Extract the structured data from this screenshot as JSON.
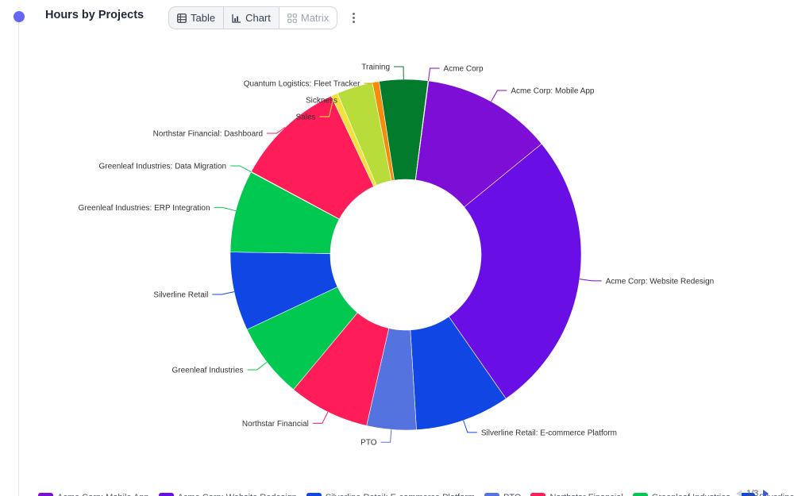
{
  "widget": {
    "title": "Hours by Projects"
  },
  "view_toggle": {
    "table_label": "Table",
    "chart_label": "Chart",
    "matrix_label": "Matrix",
    "active": "Chart"
  },
  "chart_data": {
    "type": "pie",
    "donut": true,
    "labels_position": "outside-with-leader-lines",
    "slices": [
      {
        "label": "Acme Corp: Mobile App",
        "value": 11.6,
        "color": "#7c0ed6"
      },
      {
        "label": "Acme Corp: Website Redesign",
        "value": 25.3,
        "color": "#6a0ee6"
      },
      {
        "label": "Silverline Retail: E-commerce Platform",
        "value": 8.4,
        "color": "#1046e3"
      },
      {
        "label": "PTO",
        "value": 4.4,
        "color": "#5473de"
      },
      {
        "label": "Northstar Financial",
        "value": 7.2,
        "color": "#fe1d58"
      },
      {
        "label": "Greenleaf Industries",
        "value": 6.7,
        "color": "#00c850"
      },
      {
        "label": "Silverline Retail",
        "value": 7.0,
        "color": "#1046e3"
      },
      {
        "label": "Greenleaf Industries: ERP Integration",
        "value": 7.3,
        "color": "#00c850"
      },
      {
        "label": "Greenleaf Industries: Data Migration",
        "value": 0.05,
        "color": "#00c850"
      },
      {
        "label": "Northstar Financial: Dashboard",
        "value": 9.8,
        "color": "#fe1d58"
      },
      {
        "label": "Sales",
        "value": 0.6,
        "color": "#f2e33c"
      },
      {
        "label": "Sickness",
        "value": 3.2,
        "color": "#b8dd3a"
      },
      {
        "label": "Quantum Logistics: Fleet Tracker",
        "value": 0.6,
        "color": "#f58c0a"
      },
      {
        "label": "Training",
        "value": 4.3,
        "color": "#037b2d"
      },
      {
        "label": "Acme Corp",
        "value": 0.05,
        "color": "#7c0ed6"
      }
    ]
  },
  "legend": {
    "items": [
      {
        "label": "Acme Corp: Mobile App",
        "color": "#7c0ed6"
      },
      {
        "label": "Acme Corp: Website Redesign",
        "color": "#6a0ee6"
      },
      {
        "label": "Silverline Retail: E-commerce Platform",
        "color": "#1046e3"
      },
      {
        "label": "PTO",
        "color": "#5473de"
      },
      {
        "label": "Northstar Financial",
        "color": "#fe1d58"
      },
      {
        "label": "Greenleaf Industries",
        "color": "#00c850"
      },
      {
        "label": "Silverline Retail",
        "color": "#1046e3"
      }
    ],
    "page_text": "1/3"
  }
}
